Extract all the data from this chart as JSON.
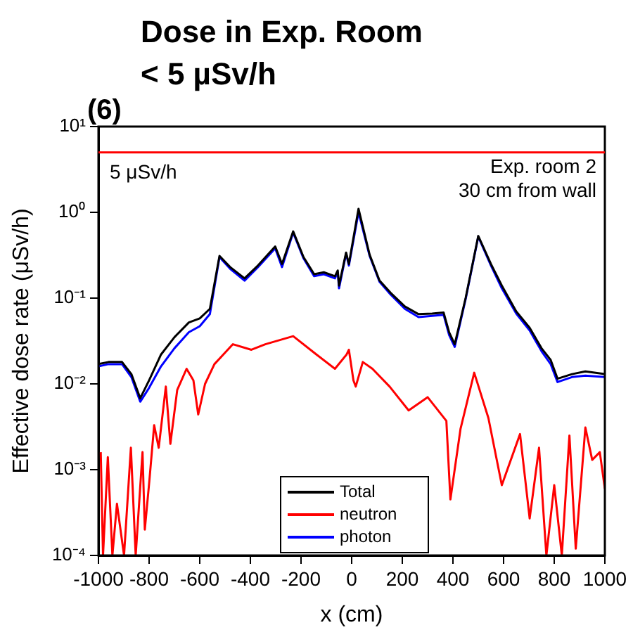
{
  "chart_data": {
    "type": "line",
    "title": "Dose in Exp. Room",
    "subtitle": "< 5 µSv/h",
    "xlabel": "x (cm)",
    "ylabel": "Effective dose rate (μSv/h)",
    "annotations": [
      "(6)",
      "Exp. room 2\n30 cm from wall"
    ],
    "log": "y",
    "grid": false,
    "legend": "bottom",
    "marker": "none",
    "line_style": "solid",
    "xlim": [
      -1000,
      1000
    ],
    "xticks": [
      -1000,
      -800,
      -600,
      -400,
      -200,
      0,
      200,
      400,
      600,
      800,
      1000
    ],
    "ylim": [
      0.0001,
      10
    ],
    "yticks": [
      {
        "value": 0.0001,
        "label": "10⁻⁴"
      },
      {
        "value": 0.001,
        "label": "10⁻³"
      },
      {
        "value": 0.01,
        "label": "10⁻²"
      },
      {
        "value": 0.1,
        "label": "10⁻¹"
      },
      {
        "value": 1,
        "label": "10⁰"
      },
      {
        "value": 10,
        "label": "10¹"
      }
    ],
    "ref_lines": [
      {
        "axis": "y",
        "value": 5,
        "label": "5 μSv/h",
        "color": "#ff0000"
      }
    ],
    "x": [
      -1000,
      -960,
      -907,
      -870,
      -835,
      -800,
      -753,
      -700,
      -643,
      -600,
      -560,
      -522,
      -480,
      -423,
      -370,
      -302,
      -275,
      -231,
      -190,
      -148,
      -110,
      -66,
      -55,
      -50,
      -22,
      -11,
      27,
      71,
      110,
      154,
      210,
      264,
      318,
      363,
      385,
      407,
      450,
      500,
      550,
      593,
      650,
      703,
      750,
      786,
      813,
      870,
      923,
      1000
    ],
    "series": [
      {
        "name": "Total",
        "color": "#000000",
        "values": [
          0.017,
          0.018,
          0.018,
          0.013,
          0.0068,
          0.011,
          0.022,
          0.035,
          0.052,
          0.058,
          0.075,
          0.31,
          0.23,
          0.17,
          0.24,
          0.4,
          0.25,
          0.6,
          0.3,
          0.19,
          0.2,
          0.18,
          0.21,
          0.14,
          0.34,
          0.25,
          1.1,
          0.32,
          0.16,
          0.115,
          0.08,
          0.065,
          0.066,
          0.068,
          0.04,
          0.029,
          0.1,
          0.53,
          0.25,
          0.14,
          0.07,
          0.045,
          0.026,
          0.019,
          0.0115,
          0.013,
          0.014,
          0.013
        ]
      },
      {
        "name": "neutron",
        "color": "#ff0000",
        "x": [
          -991,
          -982,
          -963,
          -945,
          -927,
          -899,
          -872,
          -853,
          -826,
          -817,
          -799,
          -780,
          -762,
          -734,
          -716,
          -689,
          -652,
          -625,
          -606,
          -579,
          -542,
          -469,
          -396,
          -341,
          -231,
          -139,
          -66,
          -20,
          -11,
          7,
          16,
          44,
          82,
          150,
          225,
          300,
          374,
          390,
          430,
          484,
          540,
          593,
          665,
          703,
          740,
          769,
          800,
          830,
          860,
          885,
          923,
          950,
          980,
          1000
        ],
        "values": [
          0.0016,
          0.0001,
          0.0014,
          0.0001,
          0.0004,
          0.0001,
          0.0018,
          0.0001,
          0.0016,
          0.0002,
          0.00074,
          0.0033,
          0.0018,
          0.0093,
          0.002,
          0.0085,
          0.015,
          0.011,
          0.0044,
          0.01,
          0.017,
          0.029,
          0.025,
          0.029,
          0.036,
          0.022,
          0.015,
          0.022,
          0.025,
          0.011,
          0.0093,
          0.018,
          0.015,
          0.0093,
          0.0049,
          0.007,
          0.0037,
          0.00045,
          0.003,
          0.0135,
          0.004,
          0.00066,
          0.0026,
          0.00027,
          0.0018,
          0.0001,
          0.00066,
          0.0001,
          0.0025,
          0.00012,
          0.0031,
          0.0013,
          0.0016,
          0.0006
        ]
      },
      {
        "name": "photon",
        "color": "#0000ff",
        "values": [
          0.016,
          0.017,
          0.017,
          0.012,
          0.0062,
          0.009,
          0.016,
          0.026,
          0.04,
          0.047,
          0.065,
          0.3,
          0.22,
          0.16,
          0.23,
          0.38,
          0.23,
          0.58,
          0.29,
          0.18,
          0.19,
          0.17,
          0.2,
          0.13,
          0.33,
          0.24,
          1.0,
          0.31,
          0.155,
          0.11,
          0.075,
          0.06,
          0.062,
          0.064,
          0.037,
          0.027,
          0.097,
          0.52,
          0.24,
          0.13,
          0.066,
          0.042,
          0.024,
          0.017,
          0.0105,
          0.012,
          0.0125,
          0.012
        ]
      }
    ]
  }
}
